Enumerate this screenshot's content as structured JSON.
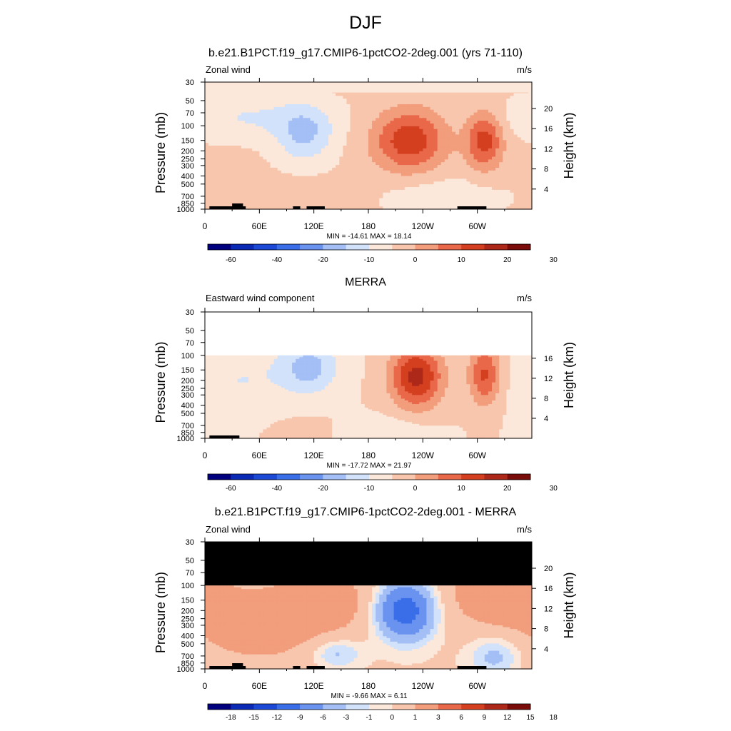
{
  "figure": {
    "title": "DJF"
  },
  "colors": {
    "abs_scale": [
      "#00007f",
      "#0a2ab5",
      "#1b49d6",
      "#3a6ee8",
      "#6a93f0",
      "#a3bff5",
      "#d2e2fa",
      "#fbe8da",
      "#f8c6ad",
      "#f29d7c",
      "#e9684a",
      "#d4401f",
      "#ad2818",
      "#7a0d0a"
    ],
    "diff_scale": [
      "#00007f",
      "#0a2ab5",
      "#1b49d6",
      "#3a6ee8",
      "#6a93f0",
      "#a3bff5",
      "#d2e2fa",
      "#fbe8da",
      "#f8c6ad",
      "#f29d7c",
      "#e9684a",
      "#d4401f",
      "#ad2818",
      "#7a0d0a"
    ]
  },
  "chart_data": [
    {
      "type": "heatmap",
      "title": "b.e21.B1PCT.f19_g17.CMIP6-1pctCO2-2deg.001 (yrs 71-110)",
      "left_label": "Zonal wind",
      "units": "m/s",
      "ylabel": "Pressure (mb)",
      "y2label": "Height (km)",
      "x_ticks": [
        "0",
        "60E",
        "120E",
        "180",
        "120W",
        "60W"
      ],
      "p_ticks": [
        "30",
        "50",
        "70",
        "100",
        "150",
        "200",
        "250",
        "300",
        "400",
        "500",
        "700",
        "850",
        "1000"
      ],
      "h_ticks": [
        "4",
        "8",
        "12",
        "16",
        "20"
      ],
      "stats": "MIN = -14.61  MAX =  18.14",
      "colorbar_labels": [
        "-60",
        "-40",
        "-20",
        "-10",
        "0",
        "10",
        "20",
        "30"
      ],
      "top_pressure": 30,
      "min": -14.61,
      "max": 18.14
    },
    {
      "type": "heatmap",
      "title": "MERRA",
      "left_label": "Eastward wind component",
      "units": "m/s",
      "ylabel": "Pressure (mb)",
      "y2label": "Height (km)",
      "x_ticks": [
        "0",
        "60E",
        "120E",
        "180",
        "120W",
        "60W"
      ],
      "p_ticks": [
        "30",
        "50",
        "70",
        "100",
        "150",
        "200",
        "250",
        "300",
        "400",
        "500",
        "700",
        "850",
        "1000"
      ],
      "h_ticks": [
        "4",
        "8",
        "12",
        "16"
      ],
      "stats": "MIN = -17.72  MAX =  21.97",
      "colorbar_labels": [
        "-60",
        "-40",
        "-20",
        "-10",
        "0",
        "10",
        "20",
        "30"
      ],
      "top_pressure": 100,
      "min": -17.72,
      "max": 21.97
    },
    {
      "type": "heatmap",
      "title": "b.e21.B1PCT.f19_g17.CMIP6-1pctCO2-2deg.001 - MERRA",
      "left_label": "Zonal wind",
      "units": "m/s",
      "ylabel": "Pressure (mb)",
      "y2label": "Height (km)",
      "x_ticks": [
        "0",
        "60E",
        "120E",
        "180",
        "120W",
        "60W"
      ],
      "p_ticks": [
        "30",
        "50",
        "70",
        "100",
        "150",
        "200",
        "250",
        "300",
        "400",
        "500",
        "700",
        "850",
        "1000"
      ],
      "h_ticks": [
        "4",
        "8",
        "12",
        "16",
        "20"
      ],
      "stats": "MIN =  -9.66  MAX =  6.11",
      "colorbar_labels": [
        "-18",
        "-15",
        "-12",
        "-9",
        "-6",
        "-3",
        "-1",
        "0",
        "1",
        "3",
        "6",
        "9",
        "12",
        "15",
        "18"
      ],
      "top_pressure": 100,
      "min": -9.66,
      "max": 6.11
    }
  ]
}
